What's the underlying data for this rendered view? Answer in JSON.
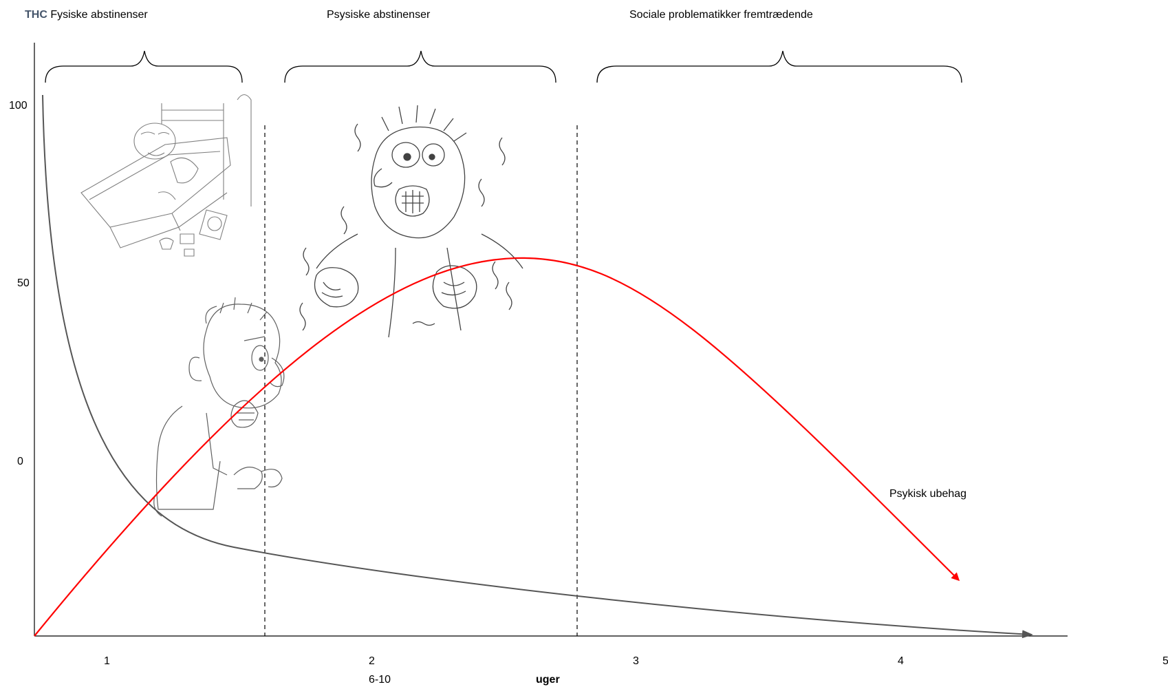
{
  "header": {
    "thc_label": "THC",
    "phases": [
      "Fysiske abstinenser",
      "Psysiske abstinenser",
      "Sociale problematikker fremtrædende"
    ]
  },
  "axes": {
    "y_ticks": [
      "100",
      "50",
      "0"
    ],
    "x_ticks": [
      "1",
      "2",
      "3",
      "4",
      "5"
    ],
    "x_sub_label": "6-10",
    "x_unit": "uger"
  },
  "curves": {
    "red_label": "Psykisk ubehag",
    "red_color": "#ff0000",
    "dark_color": "#555555"
  },
  "illustrations": [
    "sick-in-bed-illustration",
    "angry-man-illustration",
    "shaking-figure-illustration"
  ]
}
